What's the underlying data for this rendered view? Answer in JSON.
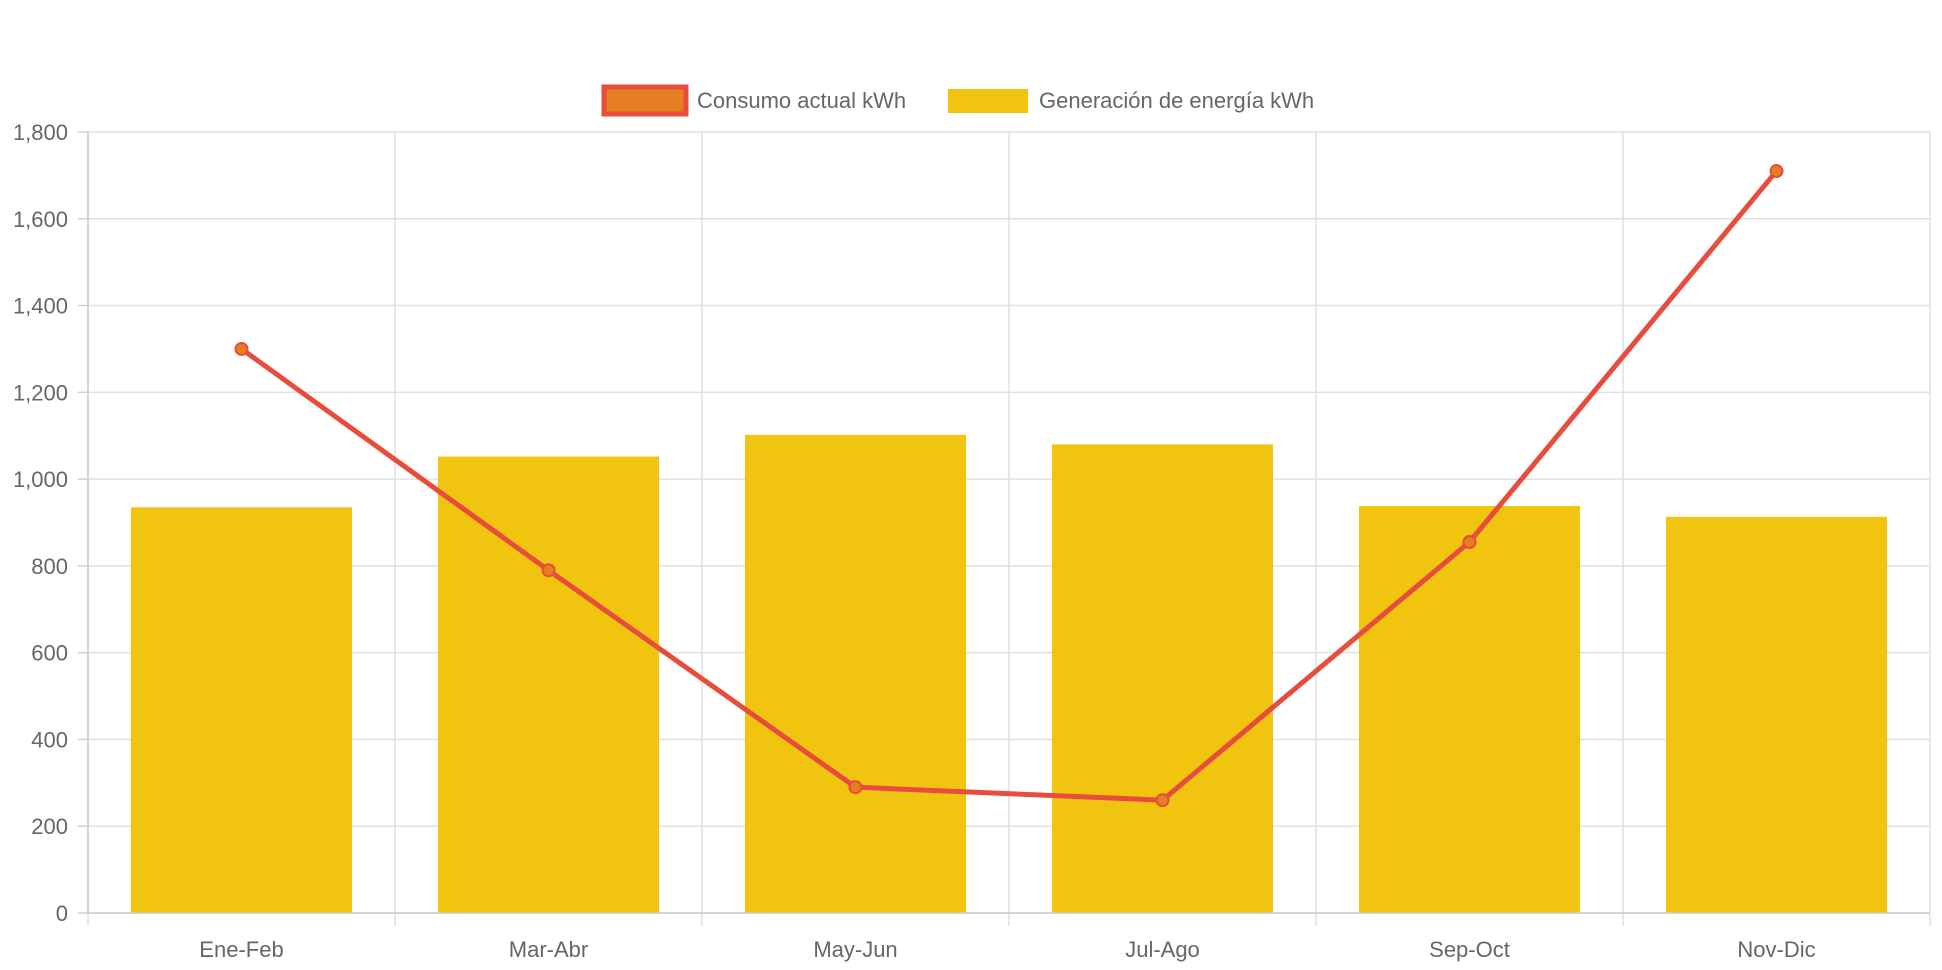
{
  "chart_data": {
    "type": "bar",
    "categories": [
      "Ene-Feb",
      "Mar-Abr",
      "May-Jun",
      "Jul-Ago",
      "Sep-Oct",
      "Nov-Dic"
    ],
    "series": [
      {
        "name": "Consumo actual kWh",
        "type": "line",
        "values": [
          1300,
          790,
          290,
          260,
          855,
          1710
        ],
        "color": "#e74c3c",
        "point_color": "#e67e22"
      },
      {
        "name": "Generación de energía kWh",
        "type": "bar",
        "values": [
          935,
          1052,
          1102,
          1080,
          938,
          913
        ],
        "color": "#f1c40f"
      }
    ],
    "yticks": [
      "0",
      "200",
      "400",
      "600",
      "800",
      "1,000",
      "1,200",
      "1,400",
      "1,600",
      "1,800"
    ],
    "ylim": [
      0,
      1800
    ],
    "grid": true,
    "legend_position": "top"
  }
}
